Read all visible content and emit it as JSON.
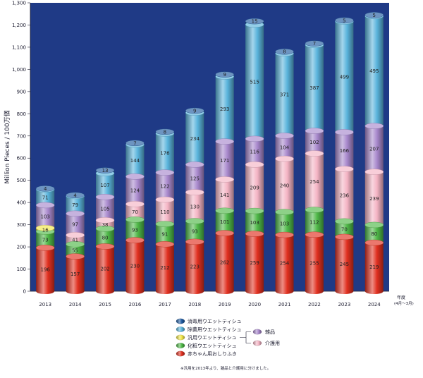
{
  "chart_data": {
    "type": "bar",
    "stacked": true,
    "ylabel": "Million Pieces / 100万個",
    "xlabel": "年度",
    "xlabel_sub": "(4月～3月)",
    "ylim": [
      0,
      1300
    ],
    "yticks": [
      "0",
      "100",
      "200",
      "300",
      "400",
      "500",
      "600",
      "700",
      "800",
      "900",
      "1,000",
      "1,100",
      "1,200",
      "1,300"
    ],
    "grid": false,
    "categories": [
      "2013",
      "2014",
      "2015",
      "2016",
      "2017",
      "2018",
      "2019",
      "2020",
      "2021",
      "2022",
      "2023",
      "2024"
    ],
    "series": [
      {
        "name": "赤ちゃん用おしりふき",
        "color": "#e03020",
        "values": [
          196,
          157,
          202,
          230,
          212,
          223,
          262,
          259,
          254,
          255,
          245,
          219
        ],
        "labels": [
          "196",
          "157",
          "202",
          "230",
          "212",
          "223",
          "262",
          "259",
          "254",
          "255",
          "245",
          "219"
        ]
      },
      {
        "name": "化粧ウエットティシュ",
        "color": "#4fb848",
        "values": [
          73,
          55,
          80,
          93,
          91,
          93,
          101,
          103,
          103,
          112,
          70,
          80
        ],
        "labels": [
          "73",
          "55",
          "80",
          "93",
          "91",
          "93",
          "101",
          "103",
          "103",
          "112",
          "70",
          "80"
        ]
      },
      {
        "name": "汎用ウエットティシュ",
        "color": "#f2e84a",
        "values": [
          16,
          0,
          0,
          0,
          0,
          0,
          0,
          0,
          0,
          0,
          0,
          0
        ],
        "labels": [
          "16",
          "",
          "",
          "",
          "",
          "",
          "",
          "",
          "",
          "",
          "",
          ""
        ]
      },
      {
        "name": "介護用",
        "color": "#f4b4c4",
        "values": [
          0,
          41,
          38,
          70,
          110,
          130,
          141,
          209,
          240,
          254,
          236,
          239
        ],
        "labels": [
          "",
          "41",
          "38",
          "70",
          "110",
          "130",
          "141",
          "209",
          "240",
          "254",
          "236",
          "239"
        ]
      },
      {
        "name": "雑品",
        "color": "#a888cc",
        "values": [
          103,
          97,
          105,
          124,
          122,
          125,
          171,
          116,
          104,
          102,
          166,
          207
        ],
        "labels": [
          "103",
          "97",
          "105",
          "124",
          "122",
          "125",
          "171",
          "116",
          "104",
          "102",
          "166",
          "207"
        ]
      },
      {
        "name": "除菌用ウエットティシュ",
        "color": "#5ab4dc",
        "values": [
          71,
          79,
          107,
          144,
          176,
          234,
          293,
          515,
          371,
          387,
          499,
          495
        ],
        "labels": [
          "71",
          "79",
          "107",
          "144",
          "176",
          "234",
          "293",
          "515",
          "371",
          "387",
          "499",
          "495"
        ]
      },
      {
        "name": "消毒用ウエットティシュ",
        "color": "#1e5aa0",
        "values": [
          4,
          4,
          13,
          7,
          8,
          9,
          9,
          15,
          8,
          7,
          5,
          5
        ],
        "labels": [
          "4",
          "4",
          "13",
          "7",
          "8",
          "9",
          "9",
          "15",
          "8",
          "7",
          "5",
          "5"
        ]
      }
    ],
    "legend": {
      "placement": "bottom",
      "items": [
        "消毒用ウエットティシュ",
        "除菌用ウエットティシュ",
        "汎用ウエットティシュ",
        "化粧ウエットティシュ",
        "赤ちゃん用おしりふき"
      ],
      "split_items": [
        "雑品",
        "介護用"
      ]
    },
    "footnote": "※汎用を2013年より、雑品と介護用に分けました。"
  }
}
